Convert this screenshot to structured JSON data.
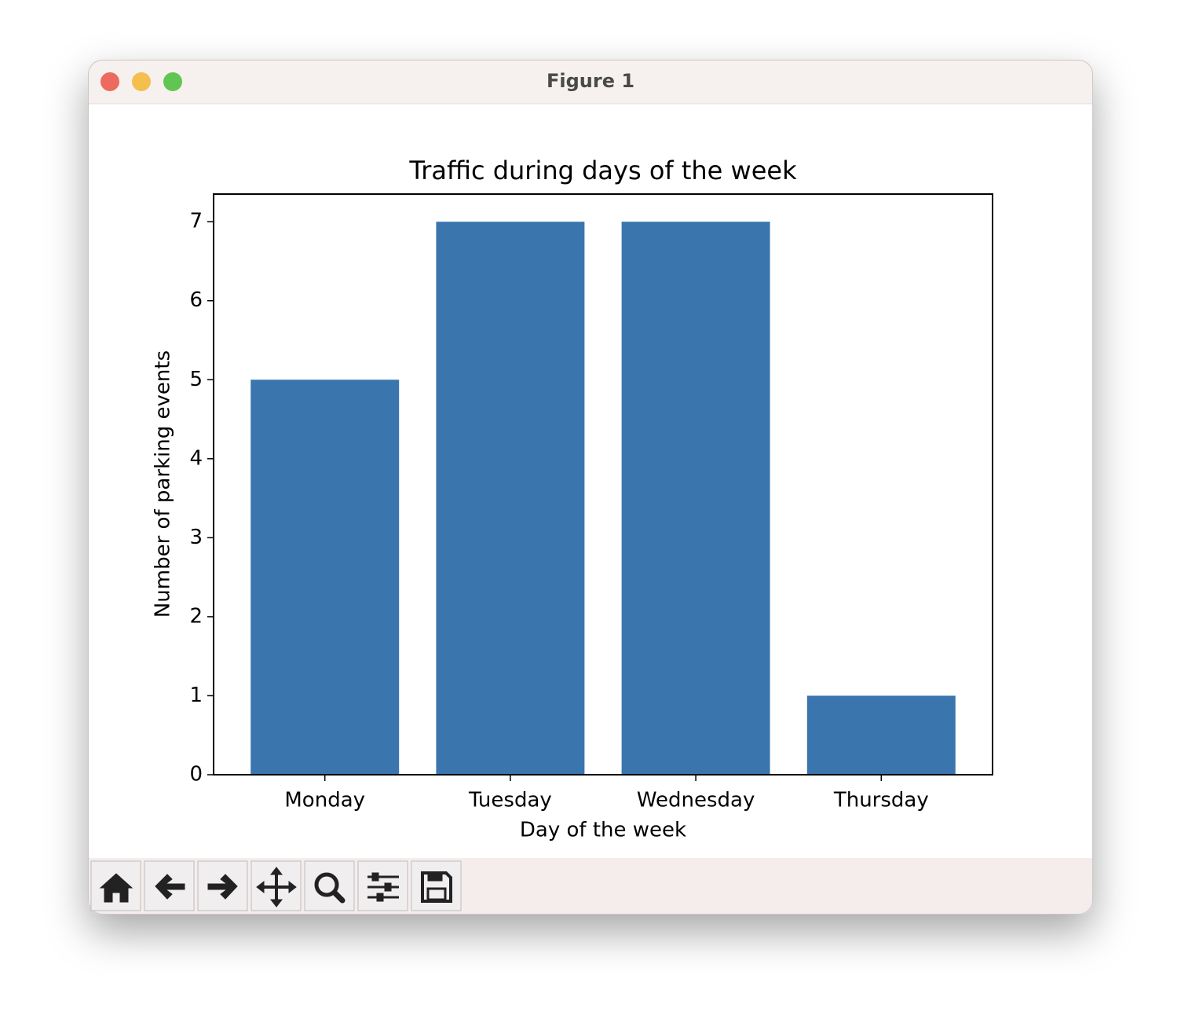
{
  "window": {
    "title": "Figure 1"
  },
  "chart_data": {
    "type": "bar",
    "title": "Traffic during days of the week",
    "x_label": "Day of the week",
    "y_label": "Number of parking events",
    "categories": [
      "Monday",
      "Tuesday",
      "Wednesday",
      "Thursday"
    ],
    "values": [
      5,
      7,
      7,
      1
    ],
    "color": "#3a75ae",
    "ylim": [
      0,
      7.35
    ],
    "yticks": [
      0,
      1,
      2,
      3,
      4,
      5,
      6,
      7
    ],
    "grid": false
  }
}
